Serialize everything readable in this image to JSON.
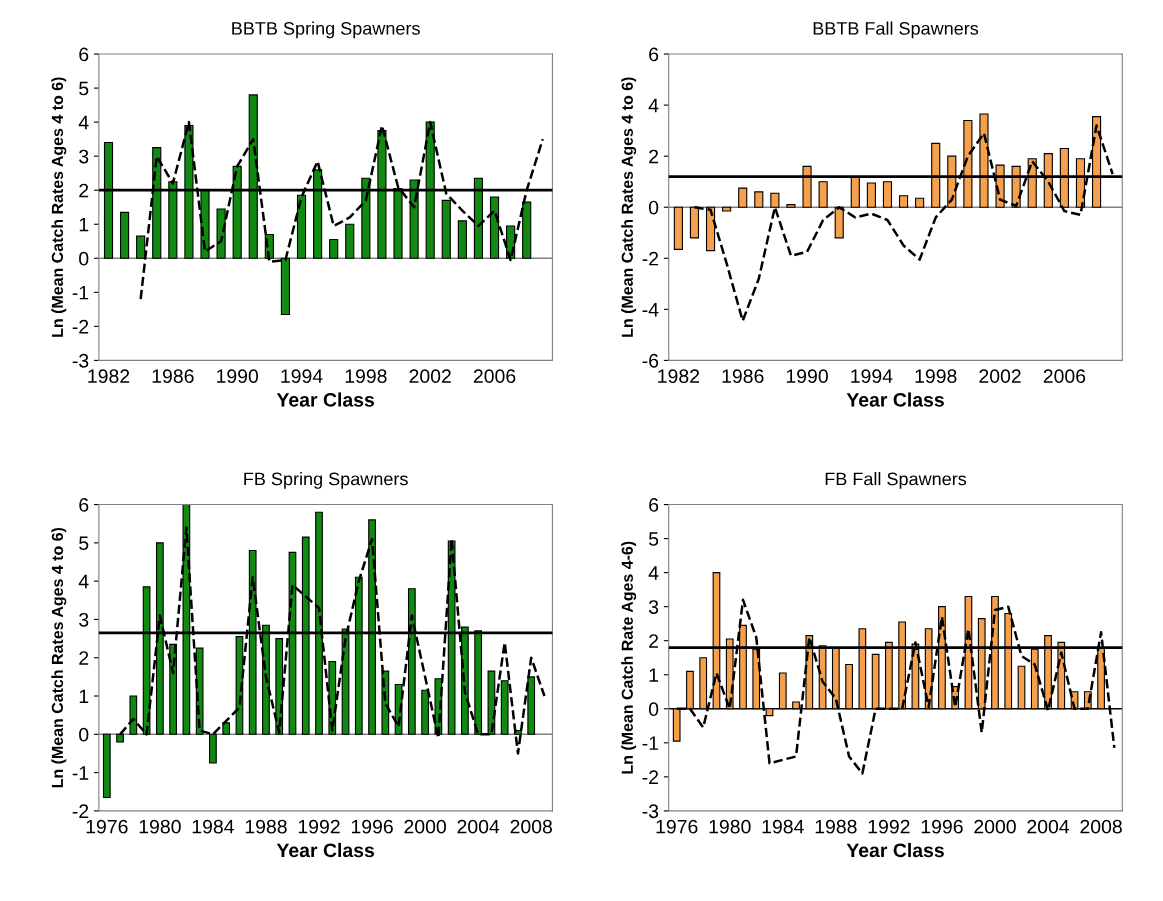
{
  "chart_data": [
    {
      "type": "bar",
      "title": "BBTB Spring Spawners",
      "xlabel": "Year Class",
      "ylabel": "Ln (Mean Catch Rates Ages 4 to 6)",
      "xlim": [
        1981.4,
        2009.6
      ],
      "xticks": [
        1982,
        1986,
        1990,
        1994,
        1998,
        2002,
        2006
      ],
      "ylim": [
        -3,
        6
      ],
      "yticks": [
        -3,
        -2,
        -1,
        0,
        1,
        2,
        3,
        4,
        5,
        6
      ],
      "grid": false,
      "ref_lines": [
        {
          "axis": "y",
          "value": 0,
          "color": "#808080"
        },
        {
          "axis": "y",
          "value": 2.0,
          "color": "#000000"
        }
      ],
      "series": [
        {
          "color": "#108a10",
          "x": [
            1982,
            1983,
            1984,
            1985,
            1986,
            1987,
            1988,
            1989,
            1990,
            1991,
            1992,
            1993,
            1994,
            1995,
            1996,
            1997,
            1998,
            1999,
            2000,
            2001,
            2002,
            2003,
            2004,
            2005,
            2006,
            2007,
            2008
          ],
          "values": [
            3.4,
            1.35,
            0.65,
            3.25,
            2.25,
            3.9,
            2.0,
            1.45,
            2.7,
            4.8,
            0.7,
            -1.65,
            1.85,
            2.6,
            0.55,
            1.0,
            2.35,
            3.75,
            2.05,
            2.3,
            4.0,
            1.7,
            1.1,
            2.35,
            1.8,
            0.95,
            1.65
          ]
        },
        {
          "type": "line",
          "color": "#000000",
          "line_style": "dashed",
          "x": [
            1984,
            1985,
            1986,
            1987,
            1988,
            1989,
            1990,
            1991,
            1992,
            1993,
            1994,
            1995,
            1996,
            1997,
            1998,
            1999,
            2000,
            2001,
            2002,
            2003,
            2004,
            2005,
            2006,
            2007,
            2008,
            2009
          ],
          "values": [
            -1.2,
            3.0,
            2.2,
            4.0,
            0.2,
            0.5,
            2.7,
            3.5,
            -0.1,
            -0.05,
            1.8,
            2.85,
            0.95,
            1.2,
            1.7,
            3.9,
            2.1,
            1.5,
            4.0,
            1.9,
            1.4,
            0.95,
            1.4,
            -0.05,
            2.0,
            3.5
          ]
        }
      ]
    },
    {
      "type": "bar",
      "title": "BBTB Fall Spawners",
      "xlabel": "Year Class",
      "ylabel": "Ln (Mean Catch Rates Ages 4 to 6)",
      "xlim": [
        1981.4,
        2009.6
      ],
      "xticks": [
        1982,
        1986,
        1990,
        1994,
        1998,
        2002,
        2006
      ],
      "ylim": [
        -6,
        6
      ],
      "yticks": [
        -6,
        -4,
        -2,
        0,
        2,
        4,
        6
      ],
      "grid": false,
      "ref_lines": [
        {
          "axis": "y",
          "value": 0,
          "color": "#808080"
        },
        {
          "axis": "y",
          "value": 1.2,
          "color": "#000000"
        }
      ],
      "series": [
        {
          "color": "#f7a04c",
          "x": [
            1982,
            1983,
            1984,
            1985,
            1986,
            1987,
            1988,
            1989,
            1990,
            1991,
            1992,
            1993,
            1994,
            1995,
            1996,
            1997,
            1998,
            1999,
            2000,
            2001,
            2002,
            2003,
            2004,
            2005,
            2006,
            2007,
            2008
          ],
          "values": [
            -1.65,
            -1.2,
            -1.7,
            -0.15,
            0.75,
            0.6,
            0.55,
            0.1,
            1.6,
            1.0,
            -1.2,
            1.2,
            0.95,
            1.0,
            0.45,
            0.35,
            2.5,
            2.0,
            3.4,
            3.65,
            1.65,
            1.6,
            1.9,
            2.1,
            2.3,
            1.9,
            3.55
          ]
        },
        {
          "type": "line",
          "color": "#000000",
          "line_style": "dashed",
          "x": [
            1983,
            1984,
            1985,
            1986,
            1987,
            1988,
            1989,
            1990,
            1991,
            1992,
            1993,
            1994,
            1995,
            1996,
            1997,
            1998,
            1999,
            2000,
            2001,
            2002,
            2003,
            2004,
            2005,
            2006,
            2007,
            2008,
            2009
          ],
          "values": [
            0,
            -0.1,
            -2.2,
            -4.45,
            -2.8,
            0,
            -1.9,
            -1.75,
            -0.5,
            0,
            -0.4,
            -0.25,
            -0.5,
            -1.5,
            -2.05,
            -0.4,
            0.3,
            2.0,
            2.9,
            0.3,
            0.05,
            1.8,
            1.0,
            -0.15,
            -0.3,
            3.2,
            1.3
          ]
        }
      ]
    },
    {
      "type": "bar",
      "title": "FB Spring Spawners",
      "xlabel": "Year Class",
      "ylabel": "Ln (Mean Catch Rates Ages 4 to 6)",
      "xlim": [
        1975.4,
        2009.6
      ],
      "xticks": [
        1976,
        1980,
        1984,
        1988,
        1992,
        1996,
        2000,
        2004,
        2008
      ],
      "ylim": [
        -2,
        6
      ],
      "yticks": [
        -2,
        -1,
        0,
        1,
        2,
        3,
        4,
        5,
        6
      ],
      "grid": false,
      "ref_lines": [
        {
          "axis": "y",
          "value": 0,
          "color": "#808080"
        },
        {
          "axis": "y",
          "value": 2.65,
          "color": "#000000"
        }
      ],
      "series": [
        {
          "color": "#108a10",
          "x": [
            1976,
            1977,
            1978,
            1979,
            1980,
            1981,
            1982,
            1983,
            1984,
            1985,
            1986,
            1987,
            1988,
            1989,
            1990,
            1991,
            1992,
            1993,
            1994,
            1995,
            1996,
            1997,
            1998,
            1999,
            2000,
            2001,
            2002,
            2003,
            2004,
            2005,
            2006,
            2007,
            2008
          ],
          "values": [
            -1.65,
            -0.2,
            1.0,
            3.85,
            5.0,
            2.35,
            6.0,
            2.25,
            -0.75,
            0.3,
            2.55,
            4.8,
            2.85,
            2.5,
            4.75,
            5.15,
            5.8,
            1.9,
            2.75,
            4.1,
            5.6,
            1.65,
            1.3,
            3.8,
            1.15,
            1.45,
            5.05,
            2.8,
            2.7,
            1.65,
            1.4,
            0.1,
            1.5
          ]
        },
        {
          "type": "line",
          "color": "#000000",
          "line_style": "dashed",
          "x": [
            1977,
            1978,
            1979,
            1980,
            1981,
            1982,
            1983,
            1984,
            1985,
            1986,
            1987,
            1988,
            1989,
            1990,
            1991,
            1992,
            1993,
            1994,
            1995,
            1996,
            1997,
            1998,
            1999,
            2000,
            2001,
            2002,
            2003,
            2004,
            2005,
            2006,
            2007,
            2008,
            2009
          ],
          "values": [
            0,
            0.4,
            0,
            3.1,
            1.6,
            5.4,
            0.1,
            0,
            0.35,
            0.7,
            4.1,
            1.5,
            0.05,
            3.9,
            3.6,
            3.3,
            0.1,
            2.5,
            4.0,
            5.1,
            0.8,
            0.2,
            3.1,
            1.5,
            -0.1,
            5.1,
            1.1,
            0,
            0,
            2.4,
            -0.5,
            2.0,
            1.0
          ]
        }
      ]
    },
    {
      "type": "bar",
      "title": "FB Fall Spawners",
      "xlabel": "Year Class",
      "ylabel": "Ln (Mean Catch Rate Ages 4-6)",
      "xlim": [
        1975.4,
        2009.6
      ],
      "xticks": [
        1976,
        1980,
        1984,
        1988,
        1992,
        1996,
        2000,
        2004,
        2008
      ],
      "ylim": [
        -3,
        6
      ],
      "yticks": [
        -3,
        -2,
        -1,
        0,
        1,
        2,
        3,
        4,
        5,
        6
      ],
      "grid": false,
      "ref_lines": [
        {
          "axis": "y",
          "value": 0,
          "color": "#000000"
        },
        {
          "axis": "y",
          "value": 1.8,
          "color": "#000000"
        }
      ],
      "series": [
        {
          "color": "#f7a04c",
          "x": [
            1976,
            1977,
            1978,
            1979,
            1980,
            1981,
            1982,
            1983,
            1984,
            1985,
            1986,
            1987,
            1988,
            1989,
            1990,
            1991,
            1992,
            1993,
            1994,
            1995,
            1996,
            1997,
            1998,
            1999,
            2000,
            2001,
            2002,
            2003,
            2004,
            2005,
            2006,
            2007,
            2008
          ],
          "values": [
            -0.95,
            1.1,
            1.5,
            4.0,
            2.05,
            2.45,
            1.75,
            -0.2,
            1.05,
            0.2,
            2.15,
            1.85,
            1.8,
            1.3,
            2.35,
            1.6,
            1.95,
            2.55,
            1.9,
            2.35,
            3.0,
            0.65,
            3.3,
            2.65,
            3.3,
            2.8,
            1.25,
            1.75,
            2.15,
            1.95,
            0.5,
            0.5,
            1.8
          ]
        },
        {
          "type": "line",
          "color": "#000000",
          "line_style": "dashed",
          "x": [
            1976,
            1977,
            1978,
            1979,
            1980,
            1981,
            1982,
            1983,
            1984,
            1985,
            1986,
            1987,
            1988,
            1989,
            1990,
            1991,
            1992,
            1993,
            1994,
            1995,
            1996,
            1997,
            1998,
            1999,
            2000,
            2001,
            2002,
            2003,
            2004,
            2005,
            2006,
            2007,
            2008,
            2009
          ],
          "values": [
            0,
            0,
            -0.55,
            1.05,
            0,
            3.2,
            2.1,
            -1.6,
            -1.5,
            -1.4,
            2.1,
            0.8,
            0.3,
            -1.4,
            -1.9,
            0,
            0,
            0,
            1.95,
            0.05,
            2.7,
            0.05,
            2.35,
            -0.7,
            2.9,
            3.0,
            1.55,
            1.3,
            -0.05,
            1.65,
            0,
            0,
            2.25,
            -1.15
          ]
        }
      ]
    }
  ]
}
